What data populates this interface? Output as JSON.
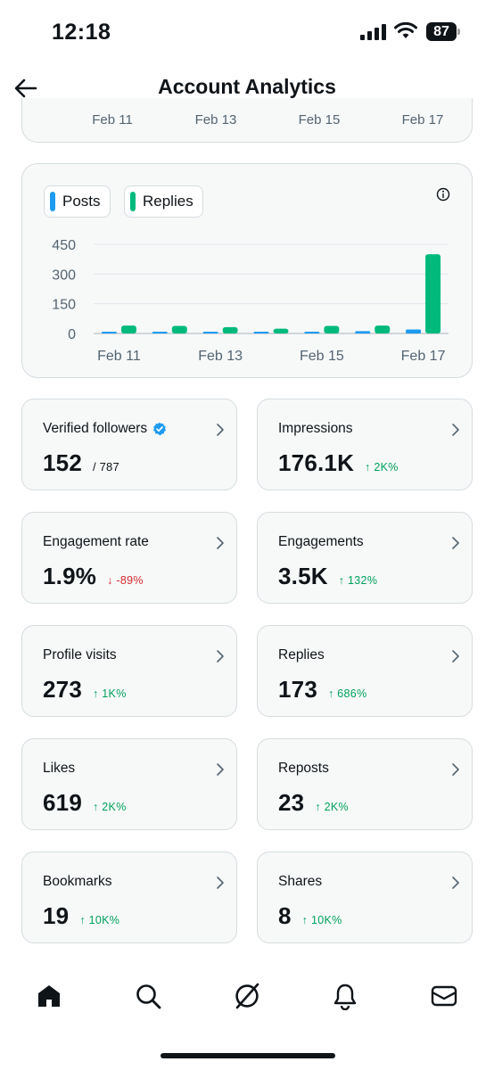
{
  "status_bar": {
    "time": "12:18",
    "battery": "87"
  },
  "header": {
    "title": "Account Analytics"
  },
  "prev_chart_ticks": [
    "Feb 11",
    "Feb 13",
    "Feb 15",
    "Feb 17"
  ],
  "chart_data": {
    "type": "bar",
    "title": "",
    "xlabel": "",
    "ylabel": "",
    "legend": [
      "Posts",
      "Replies"
    ],
    "legend_position": "top-left",
    "grid": true,
    "yticks": [
      0,
      150,
      300,
      450
    ],
    "ylim": [
      0,
      450
    ],
    "xtick_labels": [
      "Feb 11",
      "Feb 13",
      "Feb 15",
      "Feb 17"
    ],
    "categories": [
      "Feb 11",
      "Feb 12",
      "Feb 13",
      "Feb 14",
      "Feb 15",
      "Feb 16",
      "Feb 17"
    ],
    "series": [
      {
        "name": "Posts",
        "color": "#1d9bf0",
        "values": [
          4,
          5,
          5,
          2,
          7,
          12,
          20
        ]
      },
      {
        "name": "Replies",
        "color": "#00ba7c",
        "values": [
          40,
          38,
          32,
          24,
          38,
          40,
          400
        ]
      }
    ]
  },
  "stats": [
    {
      "id": "verified-followers",
      "label": "Verified followers",
      "verified": true,
      "value": "152",
      "sub": "/ 787",
      "delta": "",
      "direction": ""
    },
    {
      "id": "impressions",
      "label": "Impressions",
      "value": "176.1K",
      "sub": "",
      "delta": "↑ 2K%",
      "direction": "up"
    },
    {
      "id": "engagement-rate",
      "label": "Engagement rate",
      "value": "1.9%",
      "sub": "",
      "delta": "↓ -89%",
      "direction": "down"
    },
    {
      "id": "engagements",
      "label": "Engagements",
      "value": "3.5K",
      "sub": "",
      "delta": "↑ 132%",
      "direction": "up"
    },
    {
      "id": "profile-visits",
      "label": "Profile visits",
      "value": "273",
      "sub": "",
      "delta": "↑ 1K%",
      "direction": "up"
    },
    {
      "id": "replies",
      "label": "Replies",
      "value": "173",
      "sub": "",
      "delta": "↑ 686%",
      "direction": "up"
    },
    {
      "id": "likes",
      "label": "Likes",
      "value": "619",
      "sub": "",
      "delta": "↑ 2K%",
      "direction": "up"
    },
    {
      "id": "reposts",
      "label": "Reposts",
      "value": "23",
      "sub": "",
      "delta": "↑ 2K%",
      "direction": "up"
    },
    {
      "id": "bookmarks",
      "label": "Bookmarks",
      "value": "19",
      "sub": "",
      "delta": "↑ 10K%",
      "direction": "up"
    },
    {
      "id": "shares",
      "label": "Shares",
      "value": "8",
      "sub": "",
      "delta": "↑ 10K%",
      "direction": "up"
    }
  ],
  "nav": [
    {
      "id": "home",
      "icon": "home-icon"
    },
    {
      "id": "search",
      "icon": "search-icon"
    },
    {
      "id": "grok",
      "icon": "grok-icon"
    },
    {
      "id": "notifications",
      "icon": "bell-icon"
    },
    {
      "id": "messages",
      "icon": "mail-icon"
    }
  ]
}
